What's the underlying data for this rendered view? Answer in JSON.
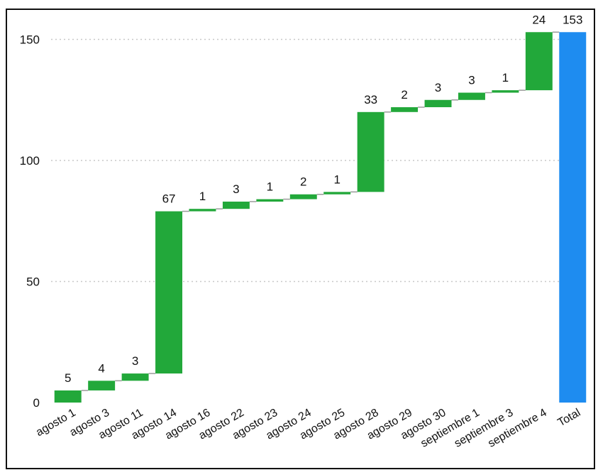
{
  "chart_data": {
    "type": "waterfall",
    "title": "",
    "xlabel": "",
    "ylabel": "",
    "ylim": [
      0,
      153
    ],
    "y_ticks": [
      0,
      50,
      100,
      150
    ],
    "grid": "horizontal-dotted",
    "categories": [
      "agosto 1",
      "agosto 3",
      "agosto 11",
      "agosto 14",
      "agosto 16",
      "agosto 22",
      "agosto 23",
      "agosto 24",
      "agosto 25",
      "agosto 28",
      "agosto 29",
      "agosto 30",
      "septiembre 1",
      "septiembre 3",
      "septiembre 4",
      "Total"
    ],
    "values": [
      5,
      4,
      3,
      67,
      1,
      3,
      1,
      2,
      1,
      33,
      2,
      3,
      3,
      1,
      24,
      153
    ],
    "total_index": 15,
    "colors": {
      "increase": "#22a83a",
      "total": "#1e8cf0",
      "connector": "#9a9a9a",
      "grid": "#c8c8c8"
    }
  }
}
